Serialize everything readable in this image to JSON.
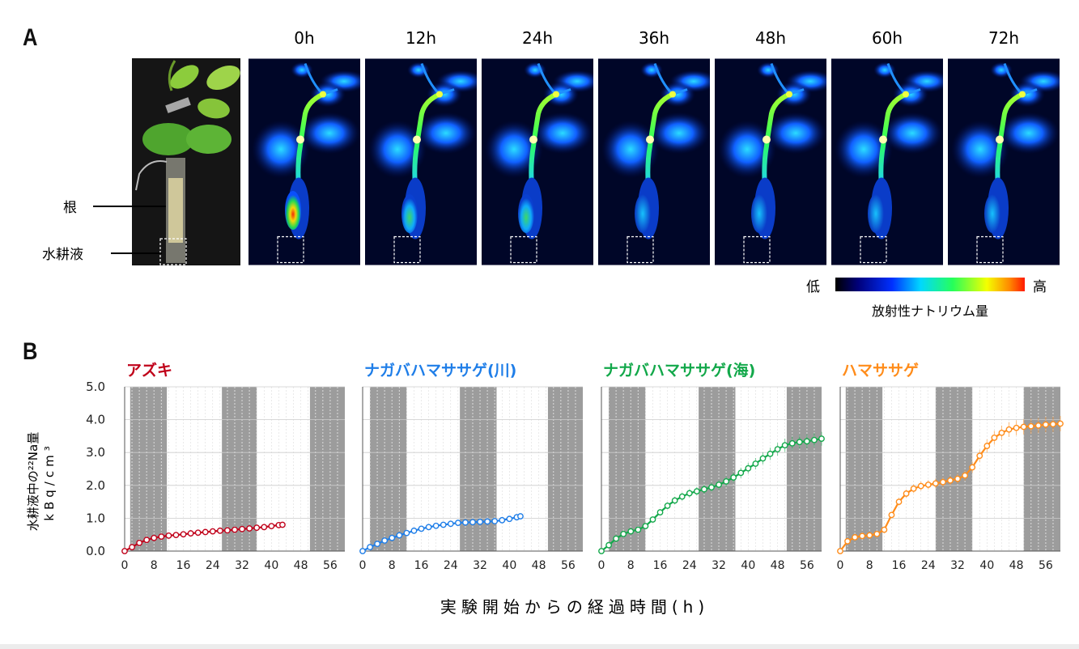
{
  "panel_a": {
    "label": "A",
    "time_labels": [
      "0h",
      "12h",
      "24h",
      "36h",
      "48h",
      "60h",
      "72h"
    ],
    "root_label": "根",
    "solution_label": "水耕液",
    "colorbar": {
      "low": "低",
      "high": "高",
      "caption": "放射性ナトリウム量"
    }
  },
  "panel_b": {
    "label": "B",
    "ylabel_line1": "水耕液中の²²Na量",
    "ylabel_line2": "kBq/cm³",
    "xlabel": "実験開始からの経過時間(h)"
  },
  "colors": {
    "azuki": "#c0001a",
    "river": "#1f7ee8",
    "sea": "#12a84a",
    "hama": "#ff8c1a",
    "dark_band": "#9c9c9c"
  },
  "chart_data": [
    {
      "type": "line",
      "title": "アズキ",
      "xlabel": "実験開始からの経過時間(h)",
      "ylabel": "水耕液中の²²Na量 kBq/cm³",
      "xlim": [
        0,
        60
      ],
      "ylim": [
        0.0,
        5.0
      ],
      "xticks": [
        0,
        8,
        16,
        24,
        32,
        40,
        48,
        56
      ],
      "yticks": [
        0.0,
        1.0,
        2.0,
        3.0,
        4.0,
        5.0
      ],
      "dark_periods": [
        [
          1.5,
          11.5
        ],
        [
          26.5,
          36
        ],
        [
          50.5,
          60
        ]
      ],
      "grid": true,
      "series": [
        {
          "x": [
            0,
            2,
            4,
            6,
            8,
            10,
            12,
            14,
            16,
            18,
            20,
            22,
            24,
            26,
            28,
            30,
            32,
            34,
            36,
            38,
            40,
            42,
            43
          ],
          "y": [
            0.0,
            0.12,
            0.25,
            0.34,
            0.4,
            0.44,
            0.47,
            0.49,
            0.51,
            0.54,
            0.56,
            0.58,
            0.6,
            0.62,
            0.63,
            0.65,
            0.67,
            0.69,
            0.71,
            0.73,
            0.76,
            0.79,
            0.8
          ]
        }
      ]
    },
    {
      "type": "line",
      "title": "ナガバハマササゲ(川)",
      "xlabel": "実験開始からの経過時間(h)",
      "ylabel": "水耕液中の²²Na量 kBq/cm³",
      "xlim": [
        0,
        60
      ],
      "ylim": [
        0.0,
        5.0
      ],
      "xticks": [
        0,
        8,
        16,
        24,
        32,
        40,
        48,
        56
      ],
      "yticks": [
        0.0,
        1.0,
        2.0,
        3.0,
        4.0,
        5.0
      ],
      "dark_periods": [
        [
          2,
          12
        ],
        [
          26.5,
          36.5
        ],
        [
          50.5,
          60
        ]
      ],
      "grid": true,
      "series": [
        {
          "x": [
            0,
            2,
            4,
            6,
            8,
            10,
            12,
            14,
            16,
            18,
            20,
            22,
            24,
            26,
            28,
            30,
            32,
            34,
            36,
            38,
            40,
            42,
            43
          ],
          "y": [
            0.0,
            0.12,
            0.22,
            0.32,
            0.4,
            0.48,
            0.55,
            0.62,
            0.68,
            0.73,
            0.77,
            0.8,
            0.83,
            0.86,
            0.87,
            0.88,
            0.89,
            0.9,
            0.91,
            0.94,
            0.98,
            1.03,
            1.06
          ]
        }
      ]
    },
    {
      "type": "line",
      "title": "ナガバハマササゲ(海)",
      "xlabel": "実験開始からの経過時間(h)",
      "ylabel": "水耕液中の²²Na量 kBq/cm³",
      "xlim": [
        0,
        60
      ],
      "ylim": [
        0.0,
        5.0
      ],
      "xticks": [
        0,
        8,
        16,
        24,
        32,
        40,
        48,
        56
      ],
      "yticks": [
        0.0,
        1.0,
        2.0,
        3.0,
        4.0,
        5.0
      ],
      "dark_periods": [
        [
          2,
          12
        ],
        [
          26.5,
          36.5
        ],
        [
          50.5,
          60
        ]
      ],
      "grid": true,
      "series": [
        {
          "x": [
            0,
            2,
            4,
            6,
            8,
            10,
            12,
            14,
            16,
            18,
            20,
            22,
            24,
            26,
            28,
            30,
            32,
            34,
            36,
            38,
            40,
            42,
            44,
            46,
            48,
            50,
            52,
            54,
            56,
            58,
            60
          ],
          "y": [
            0.0,
            0.18,
            0.38,
            0.52,
            0.6,
            0.65,
            0.76,
            0.96,
            1.18,
            1.38,
            1.54,
            1.66,
            1.76,
            1.82,
            1.88,
            1.94,
            2.02,
            2.12,
            2.24,
            2.38,
            2.52,
            2.66,
            2.82,
            2.96,
            3.1,
            3.22,
            3.28,
            3.32,
            3.34,
            3.38,
            3.42
          ]
        }
      ]
    },
    {
      "type": "line",
      "title": "ハマササゲ",
      "xlabel": "実験開始からの経過時間(h)",
      "ylabel": "水耕液中の²²Na量 kBq/cm³",
      "xlim": [
        0,
        60
      ],
      "ylim": [
        0.0,
        5.0
      ],
      "xticks": [
        0,
        8,
        16,
        24,
        32,
        40,
        48,
        56
      ],
      "yticks": [
        0.0,
        1.0,
        2.0,
        3.0,
        4.0,
        5.0
      ],
      "dark_periods": [
        [
          1.5,
          11.5
        ],
        [
          26,
          36
        ],
        [
          50,
          60
        ]
      ],
      "grid": true,
      "series": [
        {
          "x": [
            0,
            2,
            4,
            6,
            8,
            10,
            12,
            14,
            16,
            18,
            20,
            22,
            24,
            26,
            28,
            30,
            32,
            34,
            36,
            38,
            40,
            42,
            44,
            46,
            48,
            50,
            52,
            54,
            56,
            58,
            60
          ],
          "y": [
            0.0,
            0.3,
            0.42,
            0.46,
            0.48,
            0.52,
            0.65,
            1.1,
            1.5,
            1.75,
            1.9,
            1.98,
            2.02,
            2.06,
            2.1,
            2.15,
            2.2,
            2.3,
            2.55,
            2.9,
            3.2,
            3.45,
            3.6,
            3.7,
            3.75,
            3.78,
            3.8,
            3.82,
            3.85,
            3.86,
            3.88
          ]
        }
      ]
    }
  ]
}
